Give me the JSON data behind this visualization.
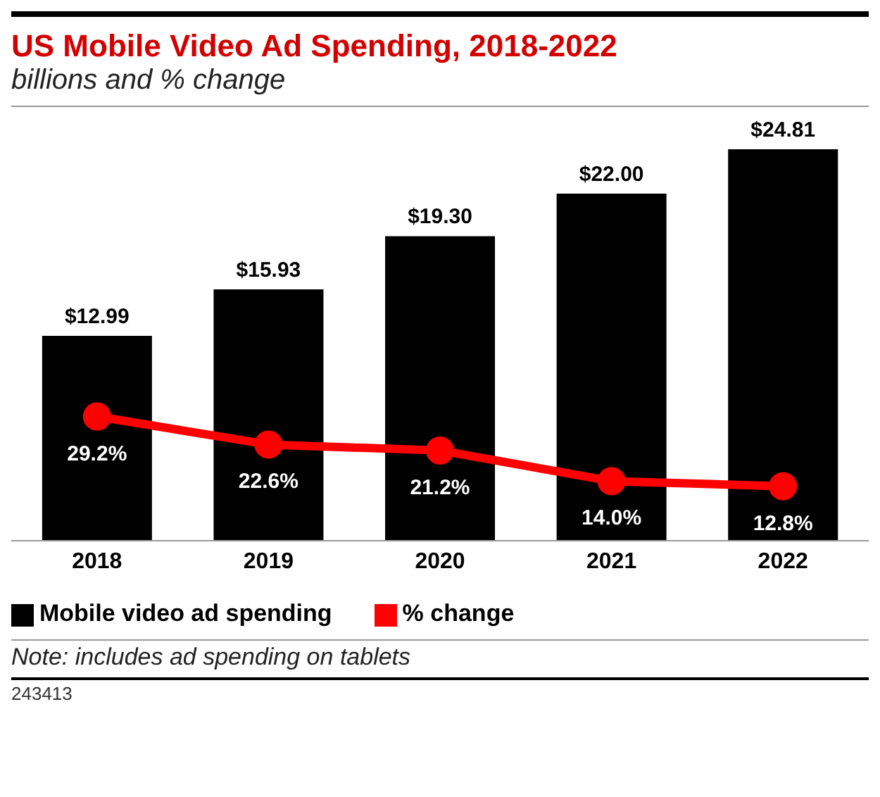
{
  "chart_data": {
    "type": "bar",
    "title": "US Mobile Video Ad Spending, 2018-2022",
    "subtitle": "billions and % change",
    "categories": [
      "2018",
      "2019",
      "2020",
      "2021",
      "2022"
    ],
    "series": [
      {
        "name": "Mobile video ad spending",
        "color": "#000000",
        "values": [
          12.99,
          15.93,
          19.3,
          22.0,
          24.81
        ],
        "value_labels": [
          "$12.99",
          "$15.93",
          "$19.30",
          "$22.00",
          "$24.81"
        ]
      },
      {
        "name": "% change",
        "type": "line",
        "axis": "y2",
        "color": "#ff0000",
        "values": [
          29.2,
          22.6,
          21.2,
          14.0,
          12.8
        ],
        "value_labels": [
          "29.2%",
          "22.6%",
          "21.2%",
          "14.0%",
          "12.8%"
        ]
      }
    ],
    "ylim": [
      0,
      24.81
    ],
    "y2lim": [
      0,
      92
    ],
    "legend": "bottom left",
    "marker": "circle",
    "annotations": [
      "Note: includes ad spending on tablets",
      "243413"
    ]
  }
}
